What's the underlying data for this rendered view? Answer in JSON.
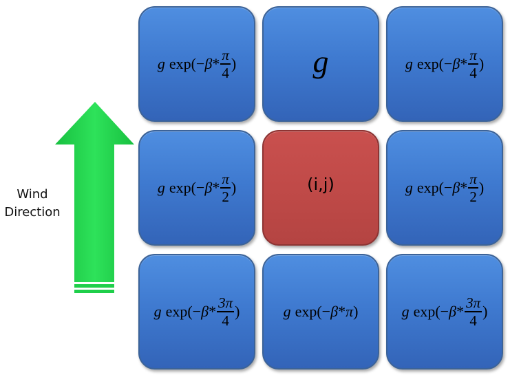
{
  "wind_label": [
    "Wind",
    "Direction"
  ],
  "colors": {
    "cell_blue": "#3f7ad0",
    "cell_center": "#c04a48",
    "arrow_green": "#1ecf4a"
  },
  "icon": "up-arrow-icon",
  "grid": {
    "top_left": {
      "prefix": "g",
      "func": "exp(",
      "minus": "−",
      "beta": "β",
      "star": "*",
      "num": "π",
      "den": "4",
      "close": ")"
    },
    "top_center": {
      "text": "g"
    },
    "top_right": {
      "prefix": "g",
      "func": "exp(",
      "minus": "−",
      "beta": "β",
      "star": "*",
      "num": "π",
      "den": "4",
      "close": ")"
    },
    "middle_left": {
      "prefix": "g",
      "func": "exp(",
      "minus": "−",
      "beta": "β",
      "star": "*",
      "num": "π",
      "den": "2",
      "close": ")"
    },
    "center": {
      "text": "(i,j)"
    },
    "middle_right": {
      "prefix": "g",
      "func": "exp(",
      "minus": "−",
      "beta": "β",
      "star": "*",
      "num": "π",
      "den": "2",
      "close": ")"
    },
    "bottom_left": {
      "prefix": "g",
      "func": "exp(",
      "minus": "−",
      "beta": "β",
      "star": "*",
      "num": "3π",
      "den": "4",
      "close": ")"
    },
    "bottom_center": {
      "prefix": "g",
      "func": "exp(",
      "minus": "−",
      "beta": "β",
      "star": "*",
      "tail": "π",
      "close": ")"
    },
    "bottom_right": {
      "prefix": "g",
      "func": "exp(",
      "minus": "−",
      "beta": "β",
      "star": "*",
      "num": "3π",
      "den": "4",
      "close": ")"
    }
  }
}
